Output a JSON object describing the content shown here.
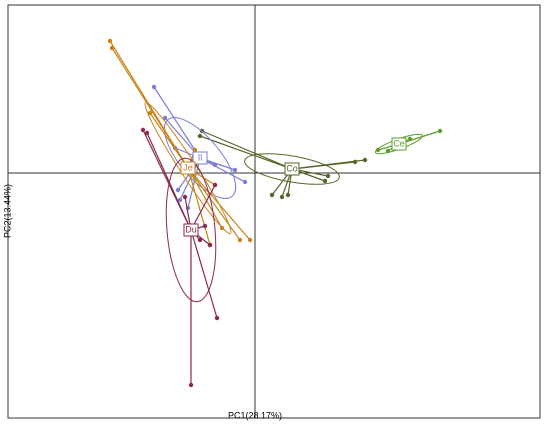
{
  "chart_data": {
    "type": "scatter",
    "x_label": "PC1(28.17%)",
    "y_label": "PC2(13.44%)",
    "xlim": [
      -2.47,
      2.85
    ],
    "ylim": [
      -2.45,
      1.68
    ],
    "series": [
      {
        "name": "Ce",
        "color": "#5e9e2a",
        "centroid": [
          1.44,
          0.29
        ],
        "x": [
          1.85,
          1.55,
          1.4,
          1.23,
          1.33
        ],
        "y": [
          0.42,
          0.34,
          0.3,
          0.23,
          0.22
        ],
        "ellipse": {
          "rx": 0.25,
          "ry": 0.05,
          "angle": 20
        }
      },
      {
        "name": "Co",
        "color": "#55672a",
        "centroid": [
          0.37,
          0.04
        ],
        "x": [
          -0.53,
          -0.55,
          1.1,
          1.0,
          0.73,
          0.7,
          0.33,
          0.27,
          0.17
        ],
        "y": [
          0.42,
          0.37,
          0.13,
          0.11,
          -0.03,
          -0.08,
          -0.22,
          -0.24,
          -0.22
        ],
        "ellipse": {
          "rx": 0.48,
          "ry": 0.13,
          "angle": -10
        }
      },
      {
        "name": "Il",
        "color": "#7a7fd0",
        "centroid": [
          -0.55,
          0.15
        ],
        "x": [
          -1.01,
          -0.9,
          -0.8,
          -0.2,
          -0.1,
          -0.4,
          -0.75,
          -0.67,
          -0.77
        ],
        "y": [
          0.86,
          0.55,
          0.25,
          0.03,
          -0.09,
          0.08,
          -0.27,
          -0.35,
          -0.17
        ],
        "ellipse": {
          "rx": 0.5,
          "ry": 0.2,
          "angle": -50
        }
      },
      {
        "name": "Je",
        "color": "#c8841a",
        "centroid": [
          -0.67,
          0.05
        ],
        "x": [
          -1.45,
          -1.43,
          -1.05,
          -0.6,
          -0.15,
          -0.05,
          -0.33,
          -0.4,
          -0.45
        ],
        "y": [
          1.32,
          1.25,
          0.6,
          0.23,
          -0.67,
          -0.67,
          -0.55,
          -0.12,
          -0.72
        ],
        "ellipse": {
          "rx": 0.78,
          "ry": 0.08,
          "angle": -57
        }
      },
      {
        "name": "Du",
        "color": "#8b2a4a",
        "centroid": [
          -0.64,
          -0.57
        ],
        "x": [
          -1.12,
          -1.08,
          -0.64,
          -0.38,
          -0.4,
          -0.45,
          -0.5,
          -0.55,
          -0.7
        ],
        "y": [
          0.43,
          0.4,
          -2.12,
          -1.45,
          -0.12,
          -0.72,
          -0.53,
          -0.67,
          -0.24
        ],
        "ellipse": {
          "rx": 0.72,
          "ry": 0.24,
          "angle": 95
        }
      }
    ]
  }
}
